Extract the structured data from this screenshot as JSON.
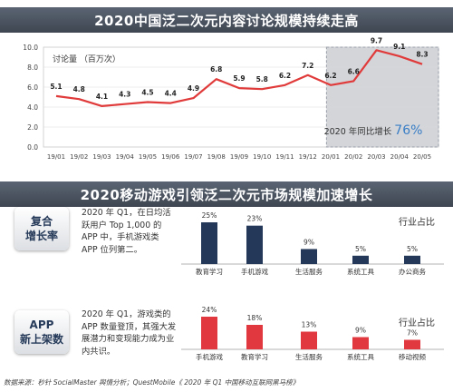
{
  "banner_top": "2020中国泛二次元内容讨论规模持续走高",
  "banner_mid": "2020移动游戏引领泛二次元市场规模加速增长",
  "line_chart": {
    "unit_label": "讨论量 （百万次）",
    "highlight_label": "2020 年同比增长",
    "highlight_value": "76%",
    "accent": "#3a7ec6"
  },
  "cards": [
    {
      "title": "复合\n增长率",
      "text": "2020 年 Q1，在日均活跃用户 Top 1,000 的 APP 中，手机游戏类 APP 位列第二。"
    },
    {
      "title": "APP\n新上架数",
      "text": "2020 年 Q1，游戏类的 APP 数量登顶，其强大发展潜力和变现能力成为业内共识。"
    }
  ],
  "share_title": "行业占比",
  "footer": "数据来源：秒针 SocialMaster 舆情分析；QuestMobile《 2020 年 Q1 中国移动互联网黑马榜》",
  "colors": {
    "line": "#e03a3a",
    "bar_navy": "#24395a",
    "bar_red": "#e0383e",
    "banner": "#4b5360"
  },
  "chart_data": [
    {
      "type": "line",
      "x": [
        "19/01",
        "19/02",
        "19/03",
        "19/04",
        "19/05",
        "19/06",
        "19/07",
        "19/08",
        "19/09",
        "19/10",
        "19/11",
        "19/12",
        "20/01",
        "20/02",
        "20/03",
        "20/04",
        "20/05"
      ],
      "series": [
        {
          "values": [
            5.1,
            4.8,
            4.1,
            4.3,
            4.5,
            4.4,
            4.9,
            6.8,
            5.9,
            5.8,
            6.2,
            7.2,
            6.2,
            6.6,
            9.7,
            9.1,
            8.3
          ]
        }
      ],
      "ylim": [
        0,
        10
      ],
      "yticks": [
        "0.0",
        "2.0",
        "4.0",
        "6.0",
        "8.0",
        "10.0"
      ],
      "ylabel": "讨论量 （百万次）",
      "grid": true
    },
    {
      "type": "bar",
      "categories": [
        "教育学习",
        "手机游戏",
        "生活服务",
        "系统工具",
        "办公商务"
      ],
      "values": [
        25,
        23,
        9,
        5,
        5
      ],
      "labels": [
        "25%",
        "23%",
        "9%",
        "5%",
        "5%"
      ],
      "title": "行业占比"
    },
    {
      "type": "bar",
      "categories": [
        "手机游戏",
        "教育学习",
        "生活服务",
        "系统工具",
        "移动视频"
      ],
      "values": [
        24,
        18,
        13,
        9,
        7
      ],
      "labels": [
        "24%",
        "18%",
        "13%",
        "9%",
        "7%"
      ],
      "title": "行业占比"
    }
  ]
}
